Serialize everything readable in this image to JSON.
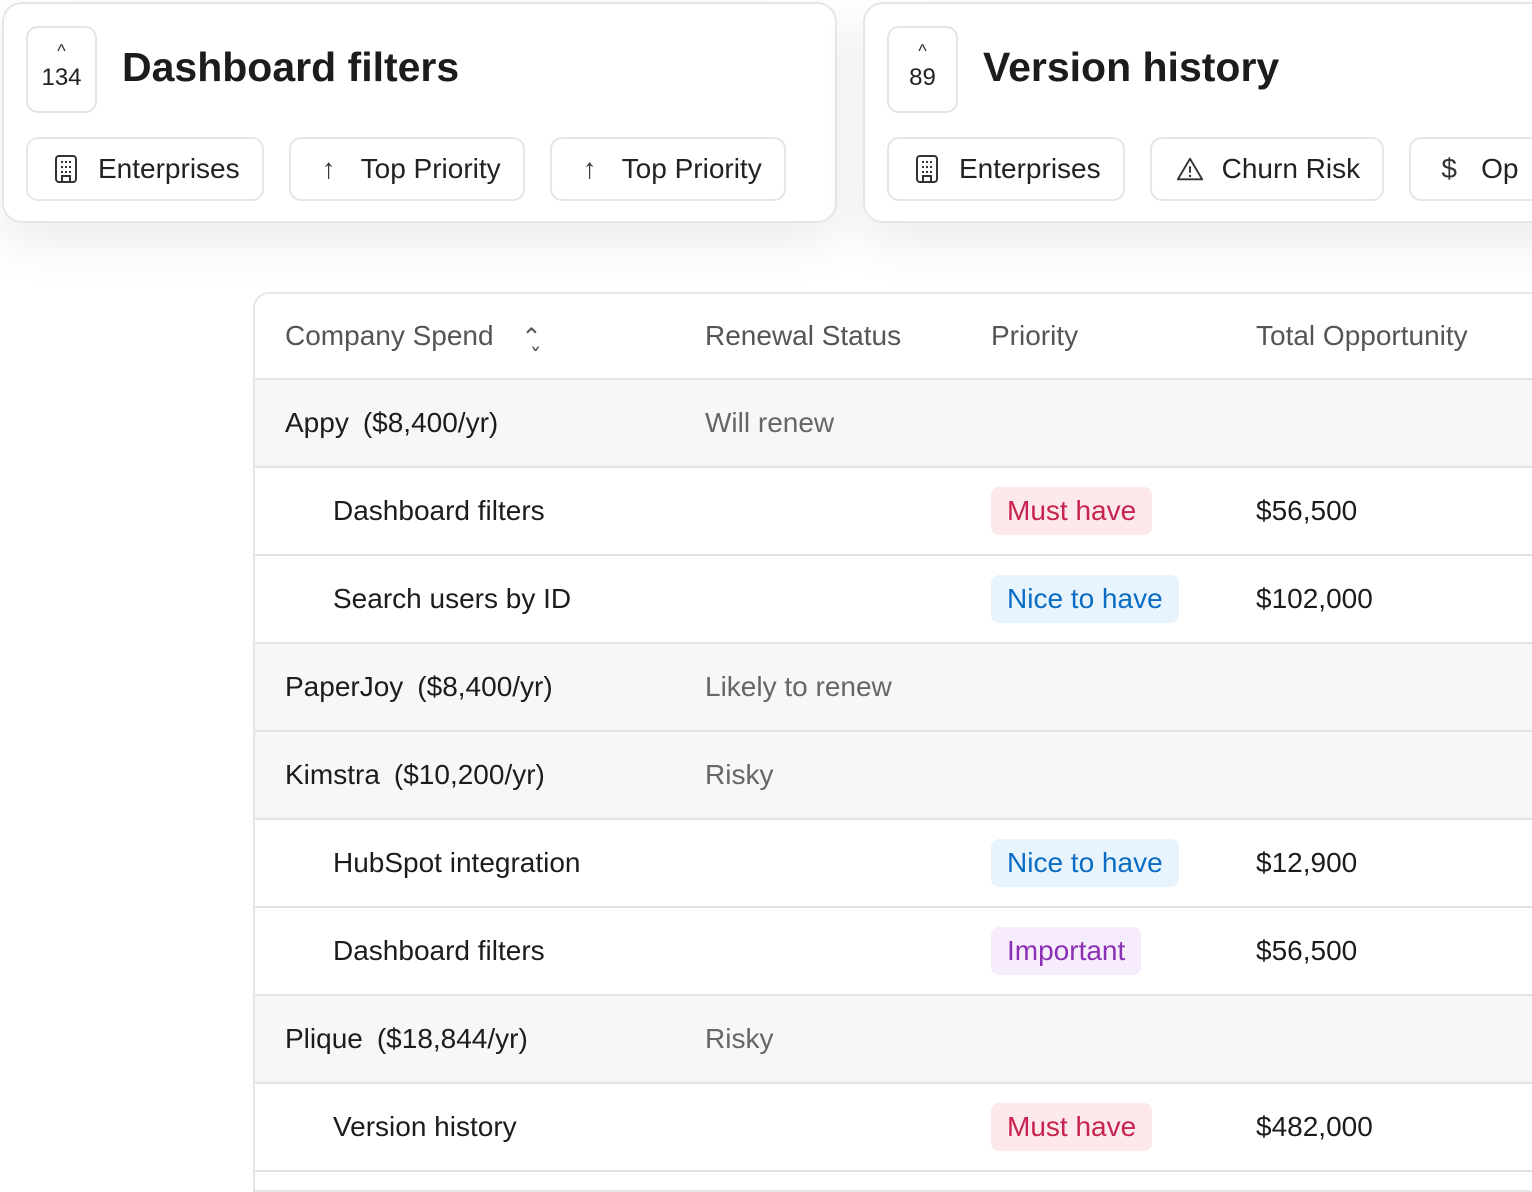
{
  "cards": [
    {
      "count": "134",
      "title": "Dashboard filters",
      "chips": [
        {
          "icon": "building-icon",
          "label": "Enterprises"
        },
        {
          "icon": "arrow-up-icon",
          "label": "Top Priority"
        },
        {
          "icon": "arrow-up-icon",
          "label": "Top Priority"
        }
      ]
    },
    {
      "count": "89",
      "title": "Version history",
      "chips": [
        {
          "icon": "building-icon",
          "label": "Enterprises"
        },
        {
          "icon": "warning-icon",
          "label": "Churn Risk"
        },
        {
          "icon": "dollar-icon",
          "label": "Op"
        }
      ]
    }
  ],
  "table": {
    "headers": [
      "Company Spend",
      "Renewal Status",
      "Priority",
      "Total Opportunity"
    ],
    "rows": [
      {
        "type": "group",
        "company": "Appy",
        "spend": "($8,400/yr)",
        "status": "Will renew"
      },
      {
        "type": "item",
        "name": "Dashboard filters",
        "priority": "Must have",
        "opportunity": "$56,500"
      },
      {
        "type": "item",
        "name": "Search users by ID",
        "priority": "Nice to have",
        "opportunity": "$102,000"
      },
      {
        "type": "group",
        "company": "PaperJoy",
        "spend": "($8,400/yr)",
        "status": "Likely to renew"
      },
      {
        "type": "group",
        "company": "Kimstra",
        "spend": "($10,200/yr)",
        "status": "Risky"
      },
      {
        "type": "item",
        "name": "HubSpot integration",
        "priority": "Nice to have",
        "opportunity": "$12,900"
      },
      {
        "type": "item",
        "name": "Dashboard filters",
        "priority": "Important",
        "opportunity": "$56,500"
      },
      {
        "type": "group",
        "company": "Plique",
        "spend": "($18,844/yr)",
        "status": "Risky"
      },
      {
        "type": "item",
        "name": "Version history",
        "priority": "Must have",
        "opportunity": "$482,000"
      }
    ]
  },
  "colors": {
    "must_have": "#c8234f",
    "nice_to_have": "#0a6cc2",
    "important": "#8b2fb5"
  }
}
